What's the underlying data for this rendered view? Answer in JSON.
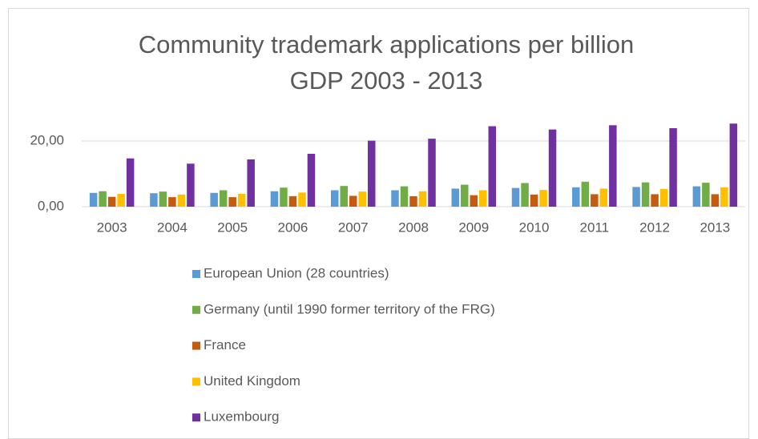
{
  "chart_data": {
    "type": "bar",
    "title": [
      "Community trademark applications per billion",
      "GDP 2003 - 2013"
    ],
    "categories": [
      "2003",
      "2004",
      "2005",
      "2006",
      "2007",
      "2008",
      "2009",
      "2010",
      "2011",
      "2012",
      "2013"
    ],
    "series": [
      {
        "name": "European Union (28 countries)",
        "color": "#5b9bd5",
        "values": [
          4.2,
          4.1,
          4.2,
          4.7,
          5.0,
          5.0,
          5.5,
          5.7,
          5.9,
          6.0,
          6.2
        ]
      },
      {
        "name": "Germany (until 1990 former territory of the FRG)",
        "color": "#70ad47",
        "values": [
          4.7,
          4.6,
          5.0,
          5.8,
          6.3,
          6.2,
          6.7,
          7.2,
          7.6,
          7.4,
          7.3
        ]
      },
      {
        "name": "France",
        "color": "#c55a11",
        "values": [
          3.0,
          2.9,
          2.9,
          3.2,
          3.3,
          3.2,
          3.5,
          3.7,
          3.8,
          3.8,
          3.8
        ]
      },
      {
        "name": "United Kingdom",
        "color": "#ffc000",
        "values": [
          3.9,
          3.7,
          3.9,
          4.3,
          4.6,
          4.7,
          5.0,
          5.1,
          5.5,
          5.4,
          5.9
        ]
      },
      {
        "name": "Luxembourg",
        "color": "#7030a0",
        "values": [
          14.7,
          13.1,
          14.4,
          16.1,
          20.1,
          20.7,
          24.5,
          23.5,
          24.8,
          23.9,
          25.3
        ]
      }
    ],
    "ylim": [
      0,
      30
    ],
    "yticks": [
      {
        "value": 0,
        "label": "0,00"
      },
      {
        "value": 20,
        "label": "20,00"
      }
    ],
    "grid": true,
    "legend": "bottom"
  }
}
